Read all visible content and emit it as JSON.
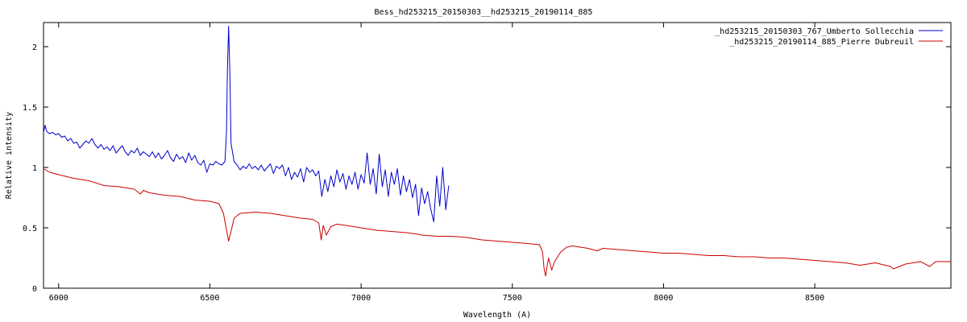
{
  "chart_data": {
    "type": "line",
    "title": "Bess_hd253215_20150303__hd253215_20190114_885",
    "xlabel": "Wavelength (A)",
    "ylabel": "Relative intensity",
    "xlim": [
      5950,
      8950
    ],
    "ylim": [
      0,
      2.2
    ],
    "x_ticks": [
      6000,
      6500,
      7000,
      7500,
      8000,
      8500
    ],
    "y_ticks": [
      0,
      0.5,
      1,
      1.5,
      2
    ],
    "grid": false,
    "legend_position": "top-right",
    "series": [
      {
        "name": "_hd253215_20150303_767_Umberto Sollecchia",
        "color": "#0000cc",
        "points": [
          [
            5950,
            1.29
          ],
          [
            5955,
            1.35
          ],
          [
            5960,
            1.3
          ],
          [
            5970,
            1.28
          ],
          [
            5980,
            1.29
          ],
          [
            5990,
            1.27
          ],
          [
            6000,
            1.28
          ],
          [
            6010,
            1.25
          ],
          [
            6020,
            1.26
          ],
          [
            6030,
            1.22
          ],
          [
            6040,
            1.24
          ],
          [
            6050,
            1.2
          ],
          [
            6060,
            1.21
          ],
          [
            6070,
            1.16
          ],
          [
            6080,
            1.19
          ],
          [
            6090,
            1.22
          ],
          [
            6100,
            1.2
          ],
          [
            6110,
            1.24
          ],
          [
            6120,
            1.19
          ],
          [
            6130,
            1.16
          ],
          [
            6140,
            1.19
          ],
          [
            6150,
            1.15
          ],
          [
            6160,
            1.17
          ],
          [
            6170,
            1.14
          ],
          [
            6180,
            1.18
          ],
          [
            6190,
            1.12
          ],
          [
            6200,
            1.15
          ],
          [
            6210,
            1.18
          ],
          [
            6220,
            1.13
          ],
          [
            6230,
            1.1
          ],
          [
            6240,
            1.14
          ],
          [
            6250,
            1.12
          ],
          [
            6260,
            1.16
          ],
          [
            6270,
            1.1
          ],
          [
            6280,
            1.13
          ],
          [
            6290,
            1.11
          ],
          [
            6300,
            1.09
          ],
          [
            6310,
            1.13
          ],
          [
            6320,
            1.08
          ],
          [
            6330,
            1.12
          ],
          [
            6340,
            1.07
          ],
          [
            6350,
            1.1
          ],
          [
            6360,
            1.14
          ],
          [
            6370,
            1.08
          ],
          [
            6380,
            1.05
          ],
          [
            6390,
            1.11
          ],
          [
            6400,
            1.07
          ],
          [
            6410,
            1.09
          ],
          [
            6420,
            1.04
          ],
          [
            6430,
            1.12
          ],
          [
            6440,
            1.06
          ],
          [
            6450,
            1.1
          ],
          [
            6460,
            1.04
          ],
          [
            6470,
            1.02
          ],
          [
            6480,
            1.06
          ],
          [
            6490,
            0.96
          ],
          [
            6500,
            1.03
          ],
          [
            6510,
            1.02
          ],
          [
            6520,
            1.05
          ],
          [
            6530,
            1.03
          ],
          [
            6540,
            1.02
          ],
          [
            6550,
            1.05
          ],
          [
            6555,
            1.3
          ],
          [
            6558,
            1.8
          ],
          [
            6562,
            2.17
          ],
          [
            6566,
            1.8
          ],
          [
            6570,
            1.2
          ],
          [
            6580,
            1.05
          ],
          [
            6590,
            1.02
          ],
          [
            6600,
            0.98
          ],
          [
            6610,
            1.01
          ],
          [
            6620,
            0.99
          ],
          [
            6630,
            1.03
          ],
          [
            6640,
            0.99
          ],
          [
            6650,
            1.01
          ],
          [
            6660,
            0.98
          ],
          [
            6670,
            1.02
          ],
          [
            6680,
            0.97
          ],
          [
            6690,
            1.0
          ],
          [
            6700,
            1.03
          ],
          [
            6710,
            0.95
          ],
          [
            6720,
            1.01
          ],
          [
            6730,
            0.99
          ],
          [
            6740,
            1.02
          ],
          [
            6750,
            0.93
          ],
          [
            6760,
            1.0
          ],
          [
            6770,
            0.9
          ],
          [
            6780,
            0.96
          ],
          [
            6790,
            0.92
          ],
          [
            6800,
            0.99
          ],
          [
            6810,
            0.88
          ],
          [
            6820,
            1.0
          ],
          [
            6830,
            0.96
          ],
          [
            6840,
            0.98
          ],
          [
            6850,
            0.93
          ],
          [
            6860,
            0.97
          ],
          [
            6870,
            0.76
          ],
          [
            6880,
            0.9
          ],
          [
            6890,
            0.8
          ],
          [
            6900,
            0.93
          ],
          [
            6910,
            0.84
          ],
          [
            6920,
            0.98
          ],
          [
            6930,
            0.88
          ],
          [
            6940,
            0.95
          ],
          [
            6950,
            0.82
          ],
          [
            6960,
            0.93
          ],
          [
            6970,
            0.86
          ],
          [
            6980,
            0.96
          ],
          [
            6990,
            0.82
          ],
          [
            7000,
            0.94
          ],
          [
            7010,
            0.87
          ],
          [
            7020,
            1.12
          ],
          [
            7030,
            0.86
          ],
          [
            7040,
            0.99
          ],
          [
            7050,
            0.78
          ],
          [
            7060,
            1.11
          ],
          [
            7070,
            0.84
          ],
          [
            7080,
            0.98
          ],
          [
            7090,
            0.76
          ],
          [
            7100,
            0.96
          ],
          [
            7110,
            0.86
          ],
          [
            7120,
            0.99
          ],
          [
            7130,
            0.77
          ],
          [
            7140,
            0.93
          ],
          [
            7150,
            0.8
          ],
          [
            7160,
            0.9
          ],
          [
            7170,
            0.75
          ],
          [
            7180,
            0.86
          ],
          [
            7190,
            0.6
          ],
          [
            7200,
            0.83
          ],
          [
            7210,
            0.7
          ],
          [
            7220,
            0.8
          ],
          [
            7230,
            0.66
          ],
          [
            7240,
            0.55
          ],
          [
            7250,
            0.93
          ],
          [
            7260,
            0.68
          ],
          [
            7270,
            1.0
          ],
          [
            7280,
            0.65
          ],
          [
            7290,
            0.85
          ]
        ]
      },
      {
        "name": "_hd253215_20190114_885_Pierre Dubreuil",
        "color": "#cc0000",
        "points": [
          [
            5950,
            0.99
          ],
          [
            5970,
            0.96
          ],
          [
            6000,
            0.94
          ],
          [
            6050,
            0.91
          ],
          [
            6100,
            0.89
          ],
          [
            6150,
            0.85
          ],
          [
            6200,
            0.84
          ],
          [
            6250,
            0.82
          ],
          [
            6270,
            0.78
          ],
          [
            6280,
            0.81
          ],
          [
            6300,
            0.79
          ],
          [
            6350,
            0.77
          ],
          [
            6400,
            0.76
          ],
          [
            6450,
            0.73
          ],
          [
            6500,
            0.72
          ],
          [
            6530,
            0.7
          ],
          [
            6545,
            0.62
          ],
          [
            6555,
            0.48
          ],
          [
            6562,
            0.39
          ],
          [
            6570,
            0.47
          ],
          [
            6580,
            0.58
          ],
          [
            6600,
            0.62
          ],
          [
            6650,
            0.63
          ],
          [
            6700,
            0.62
          ],
          [
            6750,
            0.6
          ],
          [
            6800,
            0.58
          ],
          [
            6840,
            0.57
          ],
          [
            6860,
            0.54
          ],
          [
            6868,
            0.4
          ],
          [
            6875,
            0.52
          ],
          [
            6885,
            0.44
          ],
          [
            6900,
            0.51
          ],
          [
            6920,
            0.53
          ],
          [
            6950,
            0.52
          ],
          [
            7000,
            0.5
          ],
          [
            7050,
            0.48
          ],
          [
            7100,
            0.47
          ],
          [
            7150,
            0.46
          ],
          [
            7180,
            0.45
          ],
          [
            7200,
            0.44
          ],
          [
            7250,
            0.43
          ],
          [
            7300,
            0.43
          ],
          [
            7350,
            0.42
          ],
          [
            7400,
            0.4
          ],
          [
            7450,
            0.39
          ],
          [
            7500,
            0.38
          ],
          [
            7550,
            0.37
          ],
          [
            7590,
            0.36
          ],
          [
            7600,
            0.3
          ],
          [
            7605,
            0.16
          ],
          [
            7610,
            0.1
          ],
          [
            7615,
            0.18
          ],
          [
            7620,
            0.25
          ],
          [
            7630,
            0.15
          ],
          [
            7640,
            0.22
          ],
          [
            7660,
            0.3
          ],
          [
            7680,
            0.34
          ],
          [
            7700,
            0.35
          ],
          [
            7750,
            0.33
          ],
          [
            7780,
            0.31
          ],
          [
            7800,
            0.33
          ],
          [
            7850,
            0.32
          ],
          [
            7900,
            0.31
          ],
          [
            7950,
            0.3
          ],
          [
            8000,
            0.29
          ],
          [
            8050,
            0.29
          ],
          [
            8100,
            0.28
          ],
          [
            8150,
            0.27
          ],
          [
            8200,
            0.27
          ],
          [
            8250,
            0.26
          ],
          [
            8300,
            0.26
          ],
          [
            8350,
            0.25
          ],
          [
            8400,
            0.25
          ],
          [
            8450,
            0.24
          ],
          [
            8500,
            0.23
          ],
          [
            8550,
            0.22
          ],
          [
            8600,
            0.21
          ],
          [
            8650,
            0.19
          ],
          [
            8700,
            0.21
          ],
          [
            8750,
            0.18
          ],
          [
            8760,
            0.16
          ],
          [
            8800,
            0.2
          ],
          [
            8850,
            0.22
          ],
          [
            8880,
            0.18
          ],
          [
            8900,
            0.22
          ],
          [
            8950,
            0.22
          ]
        ]
      }
    ]
  }
}
